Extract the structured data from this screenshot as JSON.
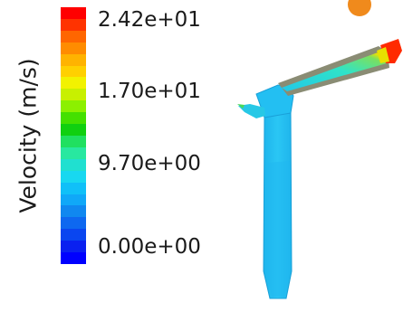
{
  "legend": {
    "title": "Velocity (m/s)",
    "ticks": [
      {
        "label": "2.42e+01",
        "value": 24.2
      },
      {
        "label": "1.70e+01",
        "value": 17.0
      },
      {
        "label": "9.70e+00",
        "value": 9.7
      },
      {
        "label": "0.00e+00",
        "value": 0.0
      }
    ],
    "colormap": [
      "#ff0000",
      "#ff3300",
      "#ff6600",
      "#ff8c00",
      "#ffb300",
      "#ffd000",
      "#f2f200",
      "#c8f000",
      "#8cf000",
      "#44e000",
      "#10d010",
      "#20e060",
      "#28e8a0",
      "#20e0d0",
      "#18d8f0",
      "#10c0f8",
      "#10a8f8",
      "#1088f0",
      "#0e68f0",
      "#0a46f0",
      "#0a20f0",
      "#0000ff"
    ]
  },
  "colors": {
    "indicator_dot": "#f08a1c",
    "column_fluid": "#23bff2",
    "column_edge": "#1aa0d8",
    "pipe_shell": "#8a8c74",
    "pipe_inner": "#2fe3c8",
    "inlet_hot": "#ff2a00",
    "inlet_mid": "#f0e000",
    "inlet_green": "#5ad000"
  }
}
